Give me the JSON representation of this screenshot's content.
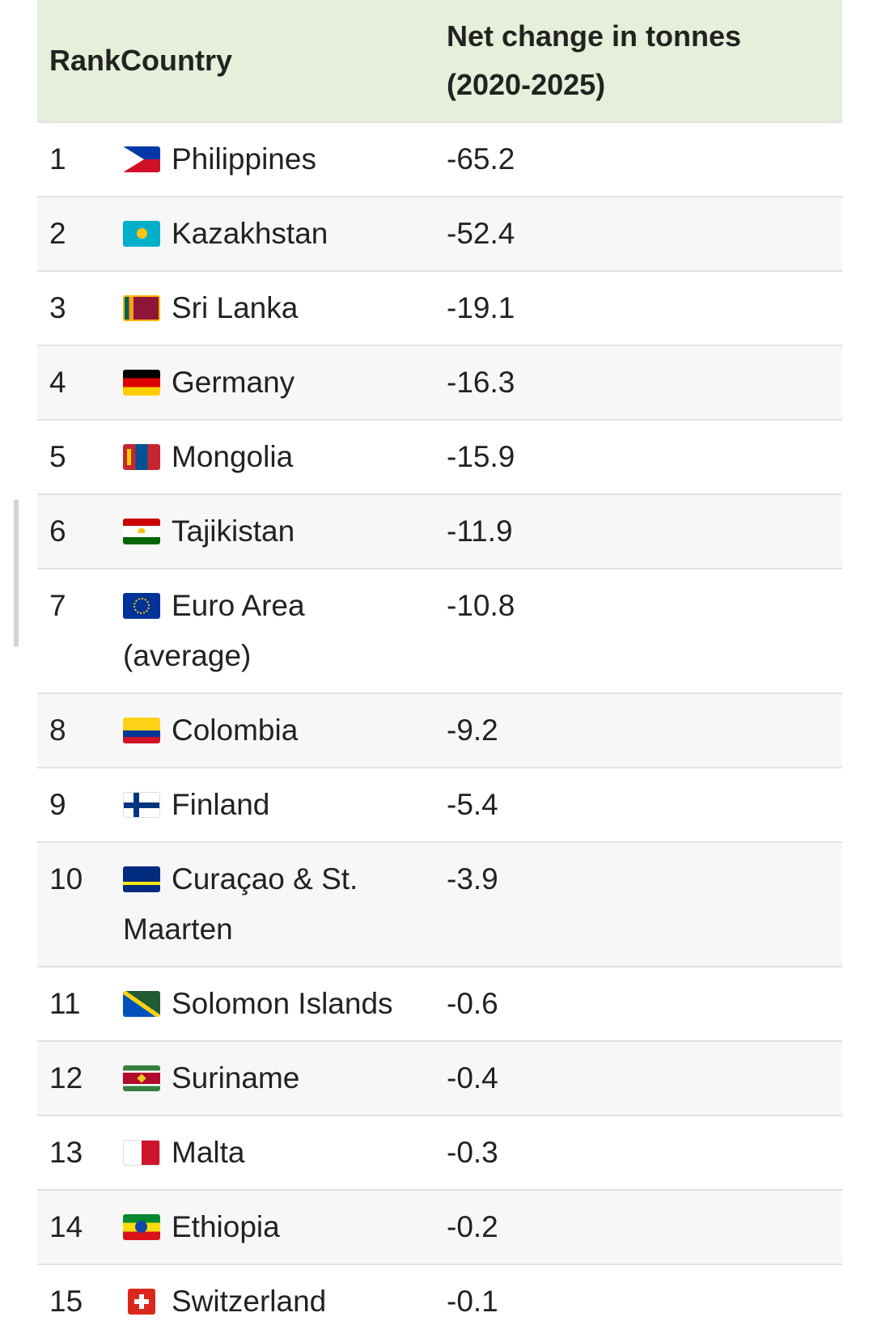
{
  "table": {
    "headers": {
      "rank_country": "RankCountry",
      "change_line1": "Net change in tonnes",
      "change_line2": "(2020-2025)"
    },
    "rows": [
      {
        "rank": "1",
        "flag_icon": "philippines-flag-icon",
        "country": "Philippines",
        "change": "-65.2"
      },
      {
        "rank": "2",
        "flag_icon": "kazakhstan-flag-icon",
        "country": "Kazakhstan",
        "change": "-52.4"
      },
      {
        "rank": "3",
        "flag_icon": "sri-lanka-flag-icon",
        "country": "Sri Lanka",
        "change": "-19.1"
      },
      {
        "rank": "4",
        "flag_icon": "germany-flag-icon",
        "country": "Germany",
        "change": "-16.3"
      },
      {
        "rank": "5",
        "flag_icon": "mongolia-flag-icon",
        "country": "Mongolia",
        "change": "-15.9"
      },
      {
        "rank": "6",
        "flag_icon": "tajikistan-flag-icon",
        "country": "Tajikistan",
        "change": "-11.9"
      },
      {
        "rank": "7",
        "flag_icon": "european-union-flag-icon",
        "country": "Euro Area (average)",
        "change": "-10.8"
      },
      {
        "rank": "8",
        "flag_icon": "colombia-flag-icon",
        "country": "Colombia",
        "change": "-9.2"
      },
      {
        "rank": "9",
        "flag_icon": "finland-flag-icon",
        "country": "Finland",
        "change": "-5.4"
      },
      {
        "rank": "10",
        "flag_icon": "curacao-flag-icon",
        "country": "Curaçao & St. Maarten",
        "change": "-3.9"
      },
      {
        "rank": "11",
        "flag_icon": "solomon-islands-flag-icon",
        "country": "Solomon Islands",
        "change": "-0.6"
      },
      {
        "rank": "12",
        "flag_icon": "suriname-flag-icon",
        "country": "Suriname",
        "change": "-0.4"
      },
      {
        "rank": "13",
        "flag_icon": "malta-flag-icon",
        "country": "Malta",
        "change": "-0.3"
      },
      {
        "rank": "14",
        "flag_icon": "ethiopia-flag-icon",
        "country": "Ethiopia",
        "change": "-0.2"
      },
      {
        "rank": "15",
        "flag_icon": "switzerland-flag-icon",
        "country": "Switzerland",
        "change": "-0.1"
      }
    ]
  },
  "colors": {
    "header_background": "#e6efd9",
    "row_alt_background": "#f7f7f7",
    "row_divider": "#e2e2e2",
    "text": "#222222"
  }
}
